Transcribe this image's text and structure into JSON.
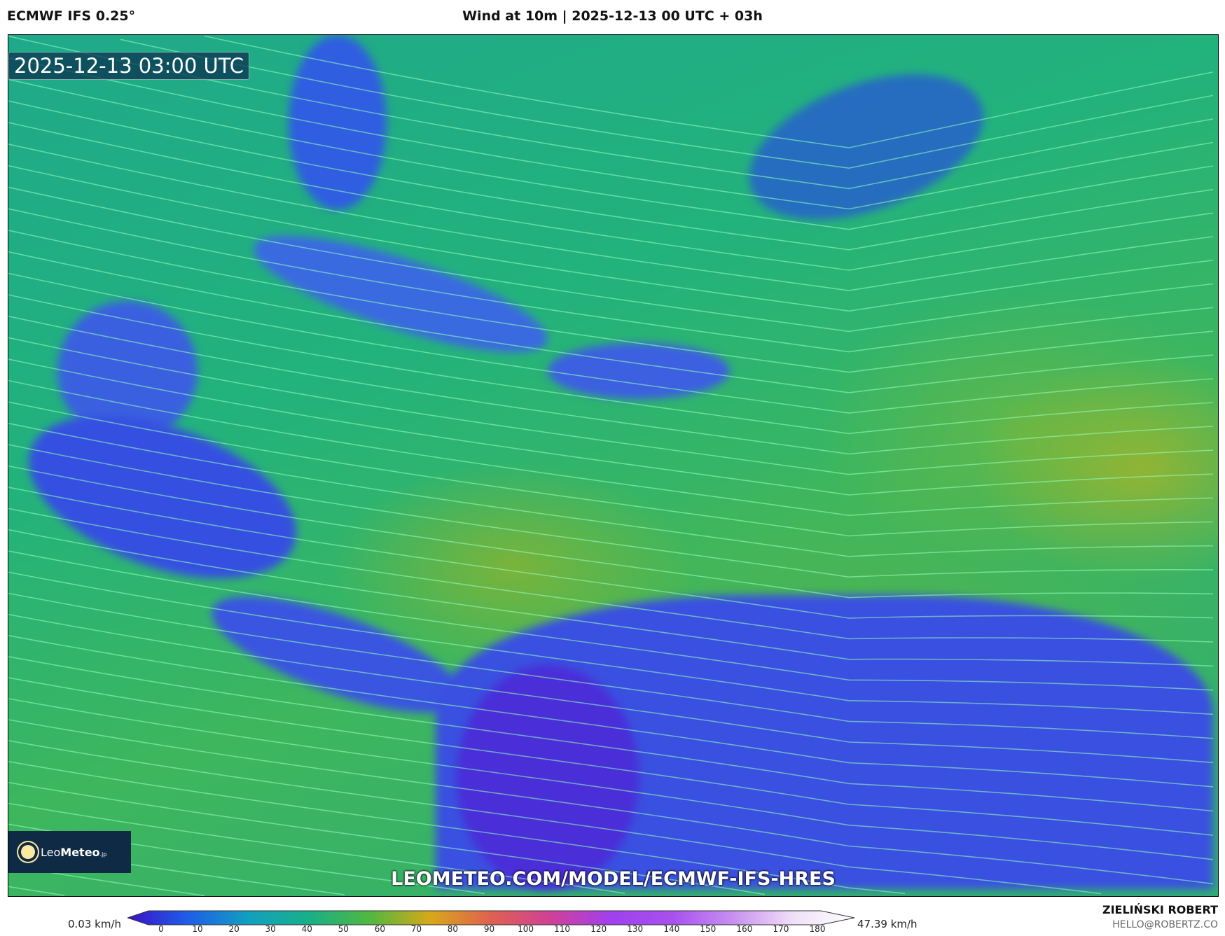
{
  "header": {
    "model": "ECMWF IFS 0.25°",
    "title": "Wind at 10m | 2025-12-13 00 UTC + 03h"
  },
  "map": {
    "valid_time": "2025-12-13 03:00 UTC",
    "url": "LEOMETEO.COM/MODEL/ECMWF-IFS-HRES",
    "logo": {
      "light": "Leo",
      "bold": "Meteo",
      "suffix": ".jp"
    }
  },
  "colorbar": {
    "min_label": "0.03 km/h",
    "max_label": "47.39 km/h",
    "ticks": [
      "0",
      "10",
      "20",
      "30",
      "40",
      "50",
      "60",
      "70",
      "80",
      "90",
      "100",
      "110",
      "120",
      "130",
      "140",
      "150",
      "160",
      "170",
      "180"
    ],
    "colors": [
      "#3a10c8",
      "#1f5ee8",
      "#12a0c0",
      "#18b088",
      "#50b840",
      "#d8a818",
      "#e06050",
      "#d04098",
      "#a040f0",
      "#a850f0",
      "#c890f0",
      "#f0e0f8",
      "#ffffff"
    ]
  },
  "footer": {
    "author": "ZIELIŃSKI ROBERT",
    "email": "HELLO@ROBERTZ.CO"
  }
}
